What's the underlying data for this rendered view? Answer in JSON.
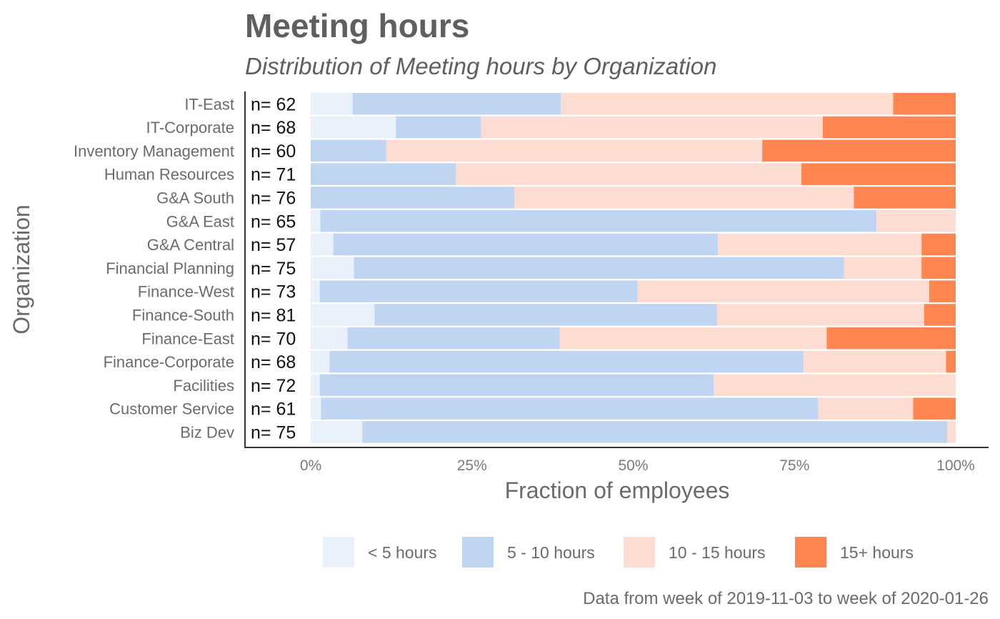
{
  "chart_data": {
    "type": "bar",
    "orientation": "horizontal",
    "stacked": "percent",
    "title": "Meeting hours",
    "subtitle": "Distribution of Meeting hours by Organization",
    "xlabel": "Fraction of employees",
    "ylabel": "Organization",
    "xlim": [
      0,
      1
    ],
    "x_ticks": [
      "0%",
      "25%",
      "50%",
      "75%",
      "100%"
    ],
    "grid": false,
    "legend_position": "bottom",
    "caption": "Data from week of 2019-11-03 to week of 2020-01-26",
    "categories": [
      "IT-East",
      "IT-Corporate",
      "Inventory Management",
      "Human Resources",
      "G&A South",
      "G&A East",
      "G&A Central",
      "Financial Planning",
      "Finance-West",
      "Finance-South",
      "Finance-East",
      "Finance-Corporate",
      "Facilities",
      "Customer Service",
      "Biz Dev"
    ],
    "n_labels": [
      "n= 62",
      "n= 68",
      "n= 60",
      "n= 71",
      "n= 76",
      "n= 65",
      "n= 57",
      "n= 75",
      "n= 73",
      "n= 81",
      "n= 70",
      "n= 68",
      "n= 72",
      "n= 61",
      "n= 75"
    ],
    "series": [
      {
        "name": "< 5 hours",
        "color": "#e8f0fa",
        "values": [
          0.065,
          0.132,
          0.0,
          0.0,
          0.0,
          0.015,
          0.035,
          0.067,
          0.014,
          0.099,
          0.057,
          0.029,
          0.014,
          0.016,
          0.08
        ]
      },
      {
        "name": "5 - 10 hours",
        "color": "#c0d5f1",
        "values": [
          0.323,
          0.132,
          0.117,
          0.225,
          0.316,
          0.862,
          0.597,
          0.76,
          0.493,
          0.531,
          0.329,
          0.735,
          0.611,
          0.771,
          0.907
        ]
      },
      {
        "name": "10 - 15 hours",
        "color": "#fdddd2",
        "values": [
          0.516,
          0.529,
          0.583,
          0.535,
          0.526,
          0.123,
          0.316,
          0.12,
          0.452,
          0.321,
          0.414,
          0.221,
          0.375,
          0.147,
          0.013
        ]
      },
      {
        "name": "15+ hours",
        "color": "#ff8650",
        "values": [
          0.097,
          0.206,
          0.3,
          0.239,
          0.158,
          0.0,
          0.053,
          0.053,
          0.041,
          0.049,
          0.2,
          0.015,
          0.0,
          0.066,
          0.0
        ]
      }
    ]
  }
}
